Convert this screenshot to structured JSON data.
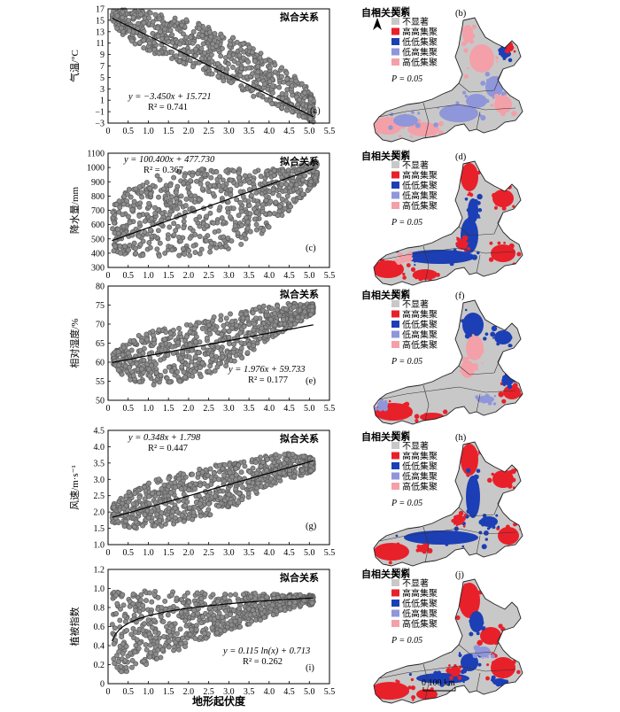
{
  "figure": {
    "xlabel_bottom": "地形起伏度",
    "scalebar_label": "0    100 km"
  },
  "chart_data": [
    {
      "id": "a",
      "type": "scatter",
      "panel_letter": "(a)",
      "title": "拟合关系",
      "ylabel": "气温/°C",
      "xlim": [
        0,
        5.5
      ],
      "ylim": [
        -3,
        17
      ],
      "xticks": [
        "0",
        "0.5",
        "1.0",
        "1.5",
        "2.0",
        "2.5",
        "3.0",
        "3.5",
        "4.0",
        "4.5",
        "5.0",
        "5.5"
      ],
      "yticks": [
        "−3",
        "−1",
        "1",
        "3",
        "5",
        "7",
        "9",
        "11",
        "13",
        "15",
        "17"
      ],
      "ytick_values": [
        -3,
        -1,
        1,
        3,
        5,
        7,
        9,
        11,
        13,
        15,
        17
      ],
      "fit": {
        "kind": "linear",
        "a": -3.45,
        "b": 15.721
      },
      "equation": "y = −3.450x + 15.721",
      "r2": "R² = 0.741",
      "band": [
        [
          0.1,
          14.5,
          16.8
        ],
        [
          0.5,
          11.5,
          16.8
        ],
        [
          1.0,
          9.5,
          16.5
        ],
        [
          1.5,
          8.5,
          15.8
        ],
        [
          2.0,
          7.0,
          15.0
        ],
        [
          2.5,
          5.5,
          14.0
        ],
        [
          3.0,
          4.0,
          12.5
        ],
        [
          3.5,
          2.0,
          11.0
        ],
        [
          4.0,
          0.5,
          8.5
        ],
        [
          4.5,
          -1.0,
          6.0
        ],
        [
          5.0,
          -2.5,
          3.0
        ],
        [
          5.1,
          -2.8,
          1.5
        ]
      ]
    },
    {
      "id": "c",
      "type": "scatter",
      "panel_letter": "(c)",
      "title": "拟合关系",
      "ylabel": "降水量/mm",
      "xlim": [
        0,
        5.5
      ],
      "ylim": [
        300,
        1100
      ],
      "xticks": [
        "0",
        "0.5",
        "1.0",
        "1.5",
        "2.0",
        "2.5",
        "3.0",
        "3.5",
        "4.0",
        "4.5",
        "5.0",
        "5.5"
      ],
      "yticks": [
        "300",
        "400",
        "500",
        "600",
        "700",
        "800",
        "900",
        "1000",
        "1100"
      ],
      "ytick_values": [
        300,
        400,
        500,
        600,
        700,
        800,
        900,
        1000,
        1100
      ],
      "fit": {
        "kind": "linear",
        "a": 100.4,
        "b": 477.73
      },
      "equation": "y = 100.400x + 477.730",
      "r2": "R² = 0.367",
      "band": [
        [
          0.1,
          420,
          720
        ],
        [
          0.5,
          380,
          850
        ],
        [
          1.0,
          370,
          930
        ],
        [
          1.5,
          370,
          960
        ],
        [
          2.0,
          380,
          985
        ],
        [
          2.5,
          400,
          990
        ],
        [
          3.0,
          430,
          990
        ],
        [
          3.5,
          480,
          990
        ],
        [
          4.0,
          560,
          990
        ],
        [
          4.5,
          700,
          1000
        ],
        [
          5.0,
          850,
          1030
        ],
        [
          5.2,
          900,
          1040
        ]
      ]
    },
    {
      "id": "e",
      "type": "scatter",
      "panel_letter": "(e)",
      "title": "拟合关系",
      "ylabel": "相对湿度/%",
      "xlim": [
        0,
        5.5
      ],
      "ylim": [
        50,
        80
      ],
      "xticks": [
        "0",
        "0.5",
        "1.0",
        "1.5",
        "2.0",
        "2.5",
        "3.0",
        "3.5",
        "4.0",
        "4.5",
        "5.0",
        "5.5"
      ],
      "yticks": [
        "50",
        "55",
        "60",
        "65",
        "70",
        "75",
        "80"
      ],
      "ytick_values": [
        50,
        55,
        60,
        65,
        70,
        75,
        80
      ],
      "fit": {
        "kind": "linear",
        "a": 1.976,
        "b": 59.733
      },
      "equation": "y = 1.976x + 59.733",
      "r2": "R² = 0.177",
      "band": [
        [
          0.1,
          59.5,
          62
        ],
        [
          0.5,
          55,
          66
        ],
        [
          1.0,
          54,
          68
        ],
        [
          1.5,
          54,
          69
        ],
        [
          2.0,
          55,
          70
        ],
        [
          2.5,
          57,
          71.5
        ],
        [
          3.0,
          59,
          73
        ],
        [
          3.5,
          62,
          74
        ],
        [
          4.0,
          66,
          75
        ],
        [
          4.5,
          69,
          75.5
        ],
        [
          5.0,
          72,
          75.5
        ],
        [
          5.1,
          73,
          75.3
        ]
      ]
    },
    {
      "id": "g",
      "type": "scatter",
      "panel_letter": "(g)",
      "title": "拟合关系",
      "ylabel": "风速/m·s⁻¹",
      "xlim": [
        0,
        5.5
      ],
      "ylim": [
        1.0,
        4.5
      ],
      "xticks": [
        "0",
        "0.5",
        "1.0",
        "1.5",
        "2.0",
        "2.5",
        "3.0",
        "3.5",
        "4.0",
        "4.5",
        "5.0",
        "5.5"
      ],
      "yticks": [
        "1.0",
        "1.5",
        "2.0",
        "2.5",
        "3.0",
        "3.5",
        "4.0",
        "4.5"
      ],
      "ytick_values": [
        1.0,
        1.5,
        2.0,
        2.5,
        3.0,
        3.5,
        4.0,
        4.5
      ],
      "fit": {
        "kind": "linear",
        "a": 0.348,
        "b": 1.798
      },
      "equation": "y = 0.348x + 1.798",
      "r2": "R² = 0.447",
      "band": [
        [
          0.1,
          1.7,
          2.2
        ],
        [
          0.5,
          1.5,
          2.6
        ],
        [
          1.0,
          1.5,
          2.9
        ],
        [
          1.5,
          1.6,
          3.1
        ],
        [
          2.0,
          1.7,
          3.25
        ],
        [
          2.5,
          1.9,
          3.4
        ],
        [
          3.0,
          2.1,
          3.5
        ],
        [
          3.5,
          2.4,
          3.6
        ],
        [
          4.0,
          2.8,
          3.75
        ],
        [
          4.5,
          3.0,
          3.8
        ],
        [
          5.0,
          3.2,
          3.7
        ],
        [
          5.1,
          3.3,
          3.6
        ]
      ]
    },
    {
      "id": "i",
      "type": "scatter",
      "panel_letter": "(i)",
      "title": "拟合关系",
      "ylabel": "植被指数",
      "xlim": [
        0,
        5.5
      ],
      "ylim": [
        0,
        1.2
      ],
      "xticks": [
        "0",
        "0.5",
        "1.0",
        "1.5",
        "2.0",
        "2.5",
        "3.0",
        "3.5",
        "4.0",
        "4.5",
        "5.0",
        "5.5"
      ],
      "yticks": [
        "0",
        "0.2",
        "0.4",
        "0.6",
        "0.8",
        "1.0",
        "1.2"
      ],
      "ytick_values": [
        0,
        0.2,
        0.4,
        0.6,
        0.8,
        1.0,
        1.2
      ],
      "fit": {
        "kind": "log",
        "a": 0.115,
        "b": 0.713
      },
      "equation": "y = 0.115 ln(x) + 0.713",
      "r2": "R² = 0.262",
      "band": [
        [
          0.1,
          0.15,
          0.97
        ],
        [
          0.5,
          0.1,
          0.98
        ],
        [
          1.0,
          0.2,
          0.98
        ],
        [
          1.5,
          0.3,
          0.97
        ],
        [
          2.0,
          0.4,
          0.97
        ],
        [
          2.5,
          0.48,
          0.96
        ],
        [
          3.0,
          0.55,
          0.95
        ],
        [
          3.5,
          0.62,
          0.95
        ],
        [
          4.0,
          0.7,
          0.95
        ],
        [
          4.5,
          0.78,
          0.94
        ],
        [
          5.0,
          0.82,
          0.93
        ],
        [
          5.1,
          0.84,
          0.92
        ]
      ]
    }
  ],
  "maps": [
    {
      "id": "b",
      "panel_letter": "(b)",
      "title": "自相关关系",
      "north": "N",
      "variant": 0
    },
    {
      "id": "d",
      "panel_letter": "(d)",
      "title": "自相关关系",
      "variant": 1
    },
    {
      "id": "f",
      "panel_letter": "(f)",
      "title": "自相关关系",
      "variant": 2
    },
    {
      "id": "h",
      "panel_letter": "(h)",
      "title": "自相关关系",
      "variant": 3
    },
    {
      "id": "j",
      "panel_letter": "(j)",
      "title": "自相关关系",
      "variant": 4
    }
  ],
  "legend": {
    "title": "图例",
    "p_label": "P = 0.05",
    "items": [
      {
        "label": "不显著",
        "color": "#c8c8c8"
      },
      {
        "label": "高高集聚",
        "color": "#e8202a"
      },
      {
        "label": "低低集聚",
        "color": "#1c3fb5"
      },
      {
        "label": "低高集聚",
        "color": "#8f96d9"
      },
      {
        "label": "高低集聚",
        "color": "#f3a0a8"
      }
    ]
  },
  "colors": {
    "scatter": "#8c8c8c",
    "scatter_edge": "#5a5a5a",
    "fit_line": "#000000"
  }
}
